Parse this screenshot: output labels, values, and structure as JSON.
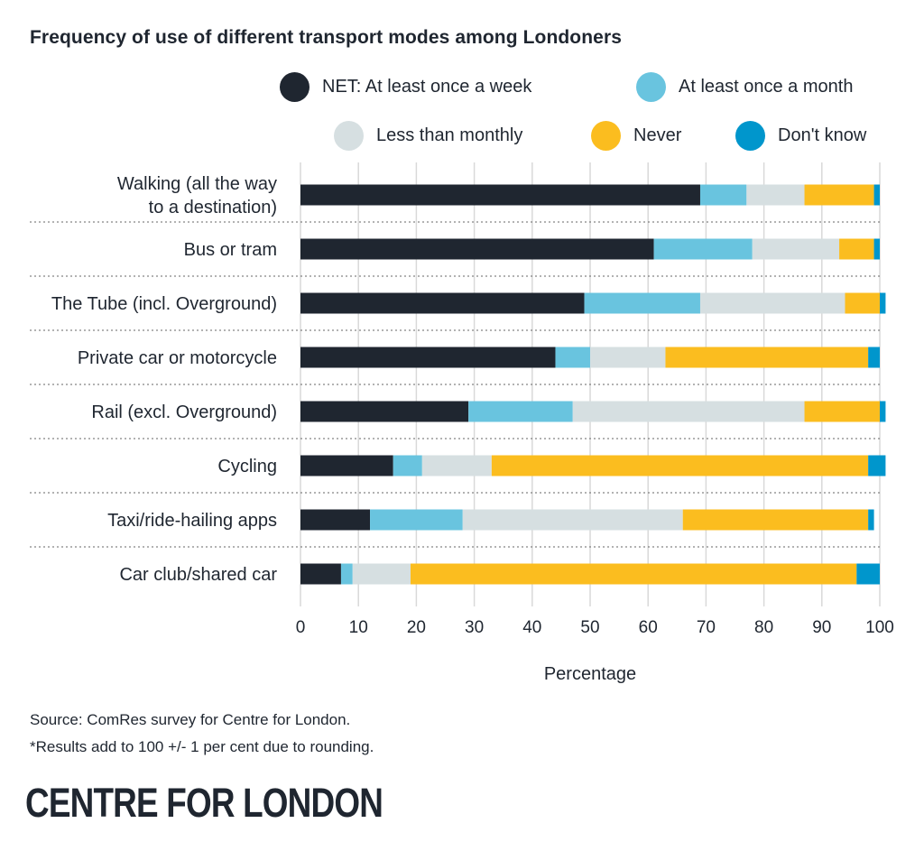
{
  "brand": "CENTRE FOR LONDON",
  "source_lines": [
    "Source: ComRes survey for Centre for London.",
    "*Results add to 100 +/- 1 per cent due to rounding."
  ],
  "chart_data": {
    "type": "bar",
    "orientation": "horizontal",
    "stacked": true,
    "title": "Frequency of use of different transport modes among Londoners",
    "xlabel": "Percentage",
    "ylabel": "",
    "xlim": [
      0,
      100
    ],
    "xticks": [
      0,
      10,
      20,
      30,
      40,
      50,
      60,
      70,
      80,
      90,
      100
    ],
    "grid": true,
    "legend_position": "top-right",
    "categories": [
      [
        "Walking (all the way",
        "to a destination)"
      ],
      [
        "Bus or tram"
      ],
      [
        "The Tube (incl. Overground)"
      ],
      [
        "Private car or motorcycle"
      ],
      [
        "Rail (excl. Overground)"
      ],
      [
        "Cycling"
      ],
      [
        "Taxi/ride-hailing apps"
      ],
      [
        "Car club/shared car"
      ]
    ],
    "series": [
      {
        "name": "NET: At least once a week",
        "color": "#1f2630",
        "values": [
          69,
          61,
          49,
          44,
          29,
          16,
          12,
          7
        ]
      },
      {
        "name": "At least once a month",
        "color": "#69c4df",
        "values": [
          8,
          17,
          20,
          6,
          18,
          5,
          16,
          2
        ]
      },
      {
        "name": "Less than monthly",
        "color": "#d6dfe1",
        "values": [
          10,
          15,
          25,
          13,
          40,
          12,
          38,
          10
        ]
      },
      {
        "name": "Never",
        "color": "#fbbd1f",
        "values": [
          12,
          6,
          6,
          35,
          13,
          65,
          32,
          77
        ]
      },
      {
        "name": "Don't know",
        "color": "#0096cc",
        "values": [
          1,
          1,
          1,
          2,
          1,
          3,
          1,
          4
        ]
      }
    ]
  }
}
